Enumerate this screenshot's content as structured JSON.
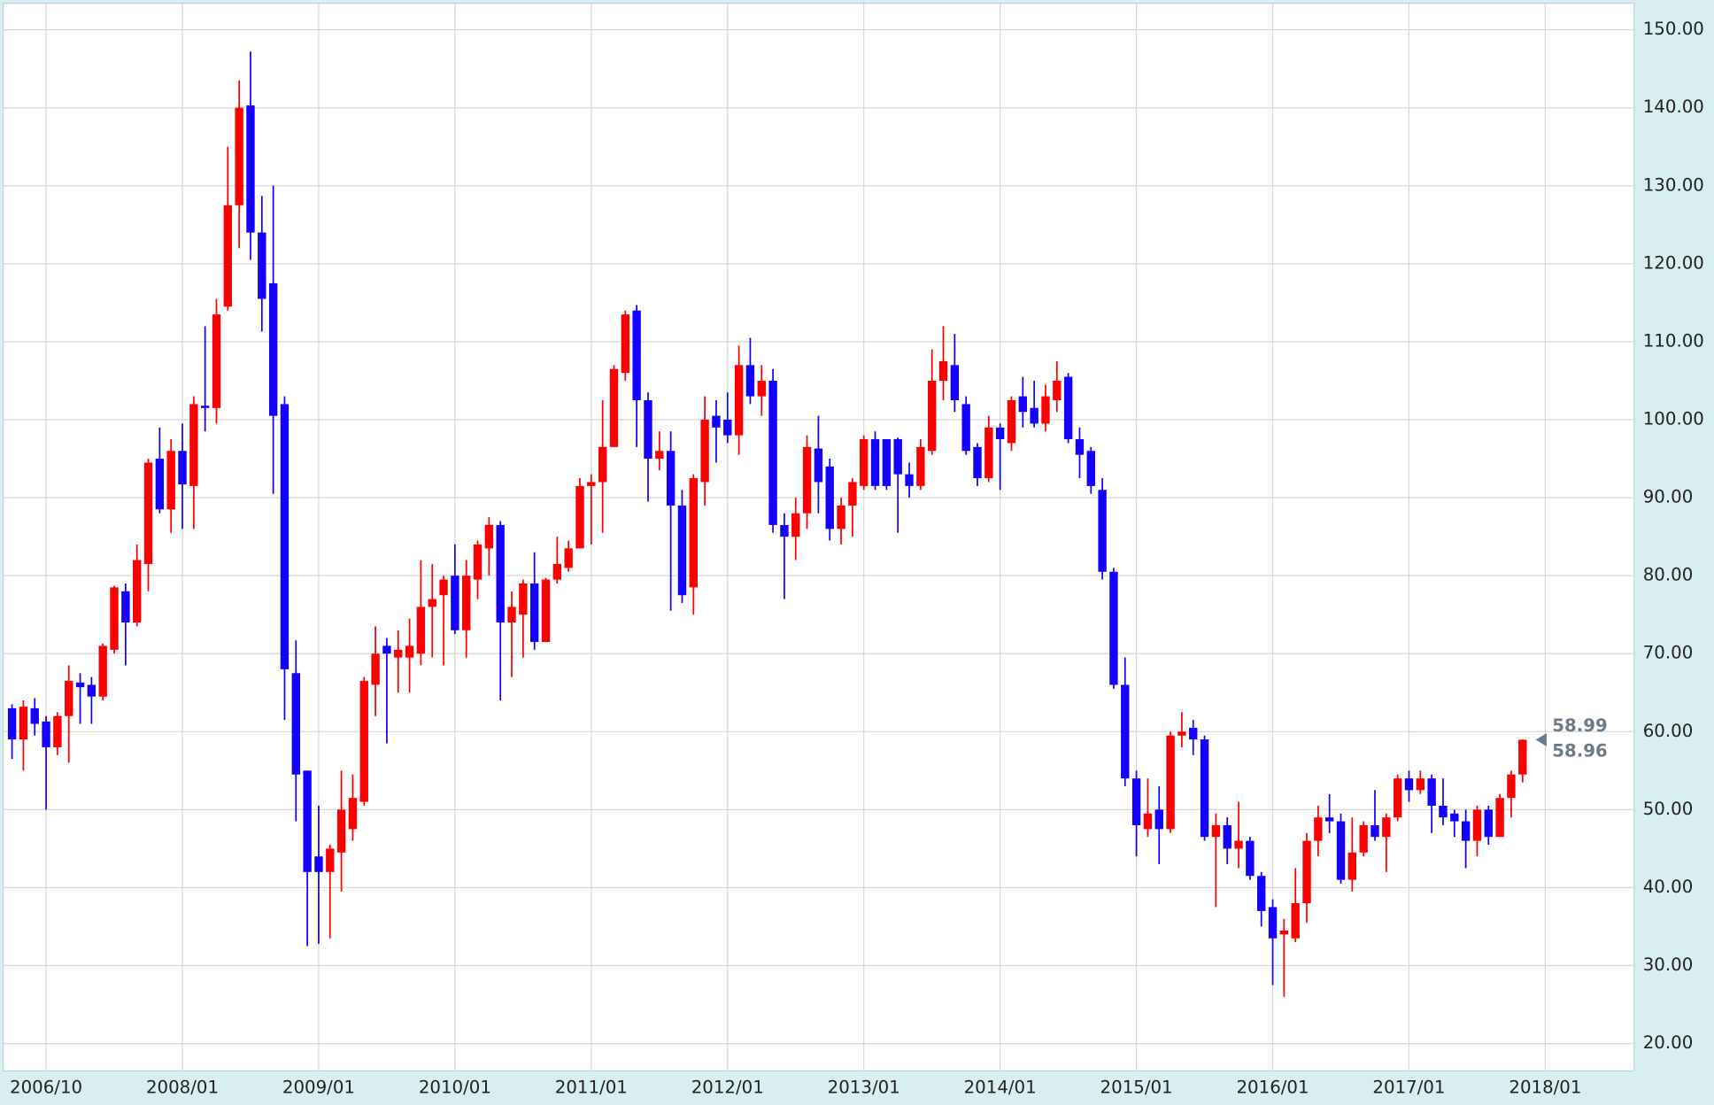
{
  "chart_data": {
    "type": "candlestick",
    "categories": [
      null,
      null,
      null,
      "2006/10",
      null,
      null,
      null,
      null,
      null,
      null,
      null,
      null,
      null,
      null,
      null,
      "2008/01",
      null,
      null,
      null,
      null,
      null,
      null,
      null,
      null,
      null,
      null,
      null,
      "2009/01",
      null,
      null,
      null,
      null,
      null,
      null,
      null,
      null,
      null,
      null,
      null,
      "2010/01",
      null,
      null,
      null,
      null,
      null,
      null,
      null,
      null,
      null,
      null,
      null,
      "2011/01",
      null,
      null,
      null,
      null,
      null,
      null,
      null,
      null,
      null,
      null,
      null,
      "2012/01",
      null,
      null,
      null,
      null,
      null,
      null,
      null,
      null,
      null,
      null,
      null,
      "2013/01",
      null,
      null,
      null,
      null,
      null,
      null,
      null,
      null,
      null,
      null,
      null,
      "2014/01",
      null,
      null,
      null,
      null,
      null,
      null,
      null,
      null,
      null,
      null,
      null,
      "2015/01",
      null,
      null,
      null,
      null,
      null,
      null,
      null,
      null,
      null,
      null,
      null,
      "2016/01",
      null,
      null,
      null,
      null,
      null,
      null,
      null,
      null,
      null,
      null,
      null,
      "2017/01",
      null,
      null,
      null,
      null,
      null,
      null,
      null,
      null,
      null,
      null,
      null,
      "2018/01"
    ],
    "open": [
      63,
      59,
      63,
      61.3,
      58,
      62,
      66.3,
      66,
      64.5,
      70.5,
      78,
      74,
      81.5,
      95,
      88.5,
      96,
      91.5,
      101.8,
      101.5,
      114.5,
      127.5,
      140.3,
      124,
      117.5,
      102,
      67.5,
      55,
      44,
      42,
      44.5,
      47.5,
      51,
      66,
      71,
      69.5,
      69.5,
      70,
      76,
      77.5,
      80,
      73,
      79.5,
      83.5,
      86.5,
      74,
      75,
      79,
      71.5,
      79.5,
      81,
      83.5,
      91.5,
      92,
      96.5,
      106,
      114,
      102.5,
      95,
      96,
      89,
      78.5,
      92,
      100.5,
      100,
      98,
      107,
      103,
      105,
      86.5,
      85,
      88,
      96.3,
      94,
      86,
      89,
      91.5,
      97.5,
      97.5,
      97.5,
      93,
      91.5,
      96,
      105,
      107,
      102,
      96.5,
      92.5,
      99,
      97,
      103,
      101.5,
      99.5,
      102.5,
      105.5,
      97.5,
      96,
      91,
      80.5,
      66,
      54,
      47.5,
      50,
      47.5,
      59.5,
      60.5,
      59,
      46.5,
      48,
      45,
      46,
      41.5,
      37.5,
      34,
      33.5,
      38,
      46,
      49,
      48.5,
      41,
      44.5,
      48,
      46.5,
      49,
      54,
      52.5,
      54,
      50.5,
      49.5,
      48.5,
      46,
      50,
      46.5,
      51.5,
      54.5,
      null,
      null
    ],
    "high": [
      63.5,
      64,
      64.3,
      62,
      62.5,
      68.5,
      67.5,
      67,
      71.3,
      78.7,
      79,
      84,
      95,
      99,
      97.5,
      99.5,
      103,
      112,
      115.5,
      135,
      143.5,
      147.2,
      128.7,
      130,
      103,
      71.7,
      55,
      50.5,
      45.5,
      55,
      54.5,
      67,
      73.5,
      72,
      73,
      74.5,
      82,
      81.5,
      80,
      84,
      82,
      84.5,
      87.5,
      87,
      78,
      79.5,
      83,
      79.7,
      85,
      84.5,
      92.5,
      93,
      102.5,
      107,
      114,
      114.7,
      103.5,
      98.5,
      98.5,
      91,
      93,
      103,
      102.5,
      103.5,
      109.5,
      110.5,
      107,
      106.5,
      88,
      90,
      98,
      100.5,
      95,
      90,
      92.5,
      98,
      98.5,
      97.5,
      97.7,
      94.5,
      97.5,
      109,
      112,
      111,
      103,
      97,
      100.5,
      99.5,
      103,
      105.5,
      105,
      104.5,
      107.5,
      106,
      99,
      96.5,
      92.5,
      81,
      69.5,
      55,
      54,
      53,
      60,
      62.5,
      61.5,
      59.5,
      49.5,
      49,
      51,
      46.5,
      42,
      38.5,
      36,
      42.5,
      47,
      50.5,
      52,
      49.5,
      49,
      48.5,
      52.5,
      49.5,
      54.5,
      55,
      55,
      54.5,
      54,
      50,
      50,
      50.5,
      50.5,
      52,
      55,
      59,
      null,
      null
    ],
    "low": [
      56.5,
      55,
      59.5,
      50,
      57,
      56,
      61,
      61,
      64,
      70,
      68.5,
      73.5,
      78,
      88,
      85.5,
      86,
      86,
      98.5,
      99.5,
      114,
      122,
      120.5,
      111.3,
      90.5,
      61.5,
      48.5,
      32.5,
      32.8,
      33.5,
      39.5,
      46,
      50.5,
      62,
      58.5,
      65,
      65,
      68.5,
      69.5,
      68.5,
      72.5,
      69.5,
      77,
      80,
      64,
      67,
      69.5,
      70.5,
      71.5,
      79,
      80.5,
      83.5,
      84,
      85.5,
      96.5,
      105,
      96.5,
      89.5,
      93.5,
      75.5,
      76.5,
      75,
      89,
      94.5,
      97,
      95.5,
      102,
      100.5,
      85.5,
      77,
      82,
      86,
      88,
      84.5,
      84,
      85,
      91,
      91,
      91,
      85.5,
      90,
      91,
      95.5,
      102.5,
      101,
      95.5,
      91.5,
      92,
      91,
      96,
      99,
      99,
      98.5,
      101,
      97,
      92.5,
      90.5,
      79.5,
      65.5,
      53,
      44,
      46.5,
      43,
      47,
      58,
      57,
      46,
      37.5,
      43,
      42.5,
      41,
      35,
      27.5,
      26,
      33,
      35.5,
      44,
      47,
      40.5,
      39.5,
      44,
      46,
      42,
      48.5,
      51,
      52,
      47,
      48,
      46.5,
      42.5,
      44,
      45.5,
      46.5,
      49,
      53.5,
      null,
      null
    ],
    "close": [
      59,
      63.2,
      61,
      58,
      62,
      66.5,
      65.7,
      64.5,
      71,
      78.5,
      74,
      82,
      94.5,
      88.5,
      96,
      91.7,
      102,
      101.5,
      113.5,
      127.5,
      140,
      124,
      115.5,
      100.5,
      68,
      54.5,
      42,
      42,
      45,
      50,
      51.5,
      66.5,
      70,
      70,
      70.5,
      71,
      76,
      77,
      79.5,
      73,
      80,
      84,
      86.5,
      74,
      76,
      79,
      71.5,
      79.5,
      81.5,
      83.5,
      91.5,
      92,
      96.5,
      106.5,
      113.5,
      102.5,
      95,
      96,
      89,
      77.5,
      92.5,
      100,
      99,
      98,
      107,
      103,
      105,
      86.5,
      85,
      88,
      96.5,
      92,
      86,
      89,
      92,
      97.5,
      91.5,
      91.5,
      93,
      91.5,
      96.5,
      105,
      107.5,
      102.5,
      96,
      92.5,
      99,
      97.5,
      102.5,
      101,
      99.5,
      103,
      105,
      97.5,
      95.5,
      91.5,
      80.5,
      66,
      54,
      48,
      49.5,
      47.5,
      59.5,
      60,
      59,
      46.5,
      48,
      45,
      46,
      41.5,
      37,
      33.5,
      34.5,
      38,
      46,
      49,
      48.5,
      41,
      44.5,
      48,
      46.5,
      49,
      54,
      52.5,
      54,
      50.5,
      49,
      48.5,
      46,
      50,
      46.5,
      51.5,
      54.5,
      58.96,
      null,
      null
    ],
    "up_color": "#ff0000",
    "down_color": "#1400ff",
    "ylim": [
      16.5,
      153.4
    ],
    "yticks": [
      {
        "value": 20,
        "label": "20.00"
      },
      {
        "value": 30,
        "label": "30.00"
      },
      {
        "value": 40,
        "label": "40.00"
      },
      {
        "value": 50,
        "label": "50.00"
      },
      {
        "value": 60,
        "label": "60.00"
      },
      {
        "value": 70,
        "label": "70.00"
      },
      {
        "value": 80,
        "label": "80.00"
      },
      {
        "value": 90,
        "label": "90.00"
      },
      {
        "value": 100,
        "label": "100.00"
      },
      {
        "value": 110,
        "label": "110.00"
      },
      {
        "value": 120,
        "label": "120.00"
      },
      {
        "value": 130,
        "label": "130.00"
      },
      {
        "value": 140,
        "label": "140.00"
      },
      {
        "value": 150,
        "label": "150.00"
      }
    ],
    "grid": true,
    "annotations": [
      "58.99",
      "58.96"
    ]
  }
}
